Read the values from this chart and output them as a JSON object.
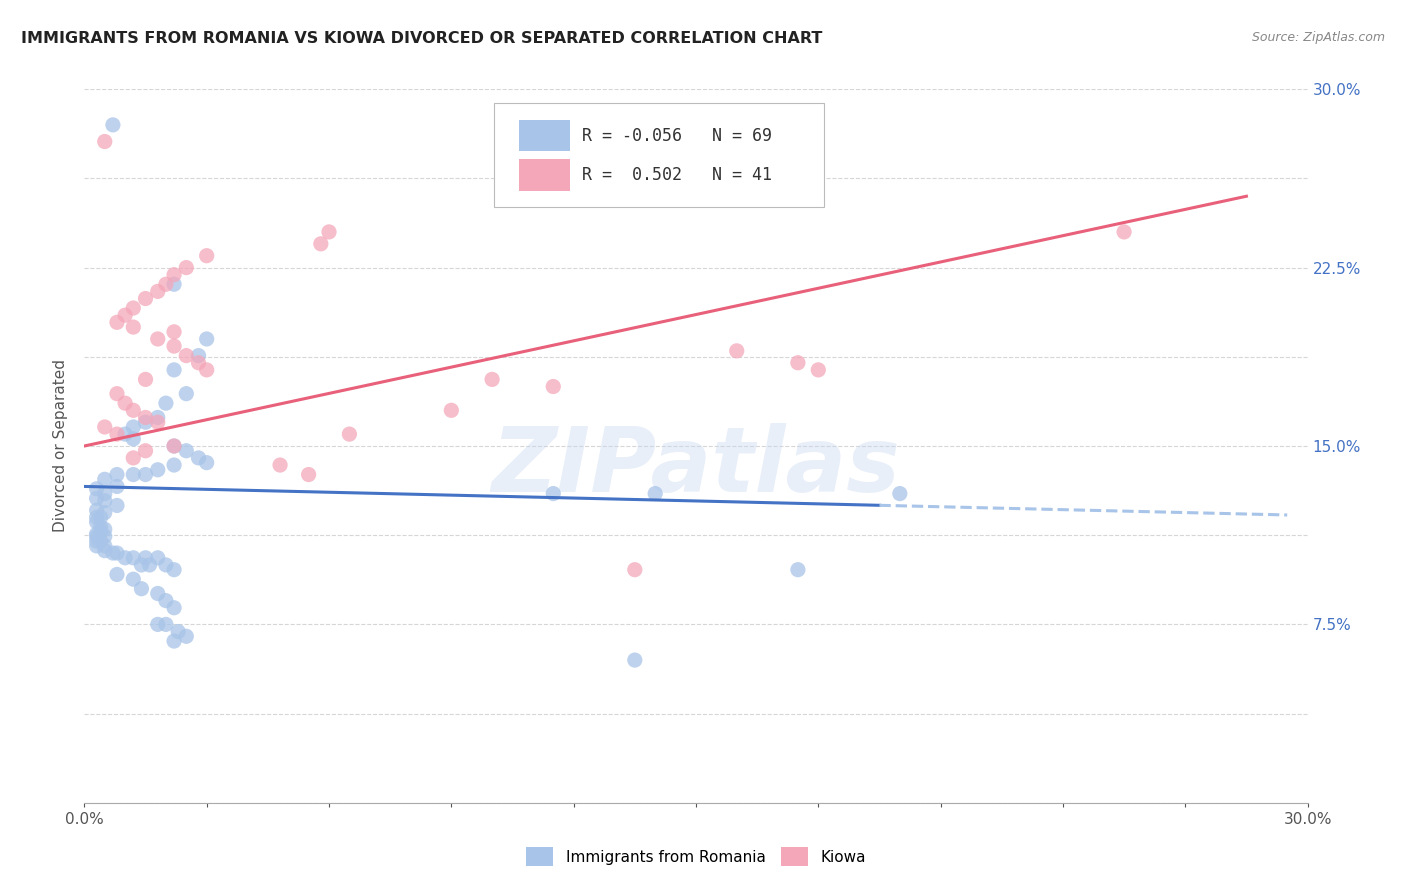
{
  "title": "IMMIGRANTS FROM ROMANIA VS KIOWA DIVORCED OR SEPARATED CORRELATION CHART",
  "source": "Source: ZipAtlas.com",
  "ylabel": "Divorced or Separated",
  "xlim": [
    0.0,
    0.3
  ],
  "ylim": [
    0.0,
    0.3
  ],
  "watermark": "ZIPatlas",
  "legend_romania_R": "-0.056",
  "legend_romania_N": "69",
  "legend_kiowa_R": "0.502",
  "legend_kiowa_N": "41",
  "romania_color": "#a8c4e8",
  "kiowa_color": "#f4a7b9",
  "romania_line_solid_color": "#4472c4",
  "romania_line_dash_color": "#a8c4e8",
  "kiowa_line_color": "#e8607a",
  "romania_scatter": [
    [
      0.007,
      0.285
    ],
    [
      0.022,
      0.218
    ],
    [
      0.03,
      0.195
    ],
    [
      0.028,
      0.188
    ],
    [
      0.022,
      0.182
    ],
    [
      0.025,
      0.172
    ],
    [
      0.02,
      0.168
    ],
    [
      0.018,
      0.162
    ],
    [
      0.015,
      0.16
    ],
    [
      0.012,
      0.158
    ],
    [
      0.01,
      0.155
    ],
    [
      0.012,
      0.153
    ],
    [
      0.022,
      0.15
    ],
    [
      0.025,
      0.148
    ],
    [
      0.028,
      0.145
    ],
    [
      0.03,
      0.143
    ],
    [
      0.022,
      0.142
    ],
    [
      0.018,
      0.14
    ],
    [
      0.015,
      0.138
    ],
    [
      0.012,
      0.138
    ],
    [
      0.008,
      0.138
    ],
    [
      0.005,
      0.136
    ],
    [
      0.008,
      0.133
    ],
    [
      0.003,
      0.132
    ],
    [
      0.005,
      0.13
    ],
    [
      0.003,
      0.128
    ],
    [
      0.005,
      0.127
    ],
    [
      0.008,
      0.125
    ],
    [
      0.003,
      0.123
    ],
    [
      0.005,
      0.122
    ],
    [
      0.003,
      0.12
    ],
    [
      0.004,
      0.12
    ],
    [
      0.003,
      0.118
    ],
    [
      0.004,
      0.116
    ],
    [
      0.005,
      0.115
    ],
    [
      0.004,
      0.114
    ],
    [
      0.003,
      0.113
    ],
    [
      0.003,
      0.112
    ],
    [
      0.005,
      0.112
    ],
    [
      0.003,
      0.11
    ],
    [
      0.004,
      0.11
    ],
    [
      0.003,
      0.108
    ],
    [
      0.005,
      0.108
    ],
    [
      0.005,
      0.106
    ],
    [
      0.007,
      0.105
    ],
    [
      0.008,
      0.105
    ],
    [
      0.01,
      0.103
    ],
    [
      0.012,
      0.103
    ],
    [
      0.015,
      0.103
    ],
    [
      0.018,
      0.103
    ],
    [
      0.014,
      0.1
    ],
    [
      0.016,
      0.1
    ],
    [
      0.02,
      0.1
    ],
    [
      0.022,
      0.098
    ],
    [
      0.008,
      0.096
    ],
    [
      0.012,
      0.094
    ],
    [
      0.014,
      0.09
    ],
    [
      0.018,
      0.088
    ],
    [
      0.02,
      0.085
    ],
    [
      0.022,
      0.082
    ],
    [
      0.018,
      0.075
    ],
    [
      0.02,
      0.075
    ],
    [
      0.023,
      0.072
    ],
    [
      0.025,
      0.07
    ],
    [
      0.022,
      0.068
    ],
    [
      0.115,
      0.13
    ],
    [
      0.14,
      0.13
    ],
    [
      0.175,
      0.098
    ],
    [
      0.2,
      0.13
    ],
    [
      0.135,
      0.06
    ]
  ],
  "kiowa_scatter": [
    [
      0.005,
      0.278
    ],
    [
      0.06,
      0.24
    ],
    [
      0.058,
      0.235
    ],
    [
      0.03,
      0.23
    ],
    [
      0.025,
      0.225
    ],
    [
      0.022,
      0.222
    ],
    [
      0.02,
      0.218
    ],
    [
      0.018,
      0.215
    ],
    [
      0.015,
      0.212
    ],
    [
      0.012,
      0.208
    ],
    [
      0.01,
      0.205
    ],
    [
      0.008,
      0.202
    ],
    [
      0.012,
      0.2
    ],
    [
      0.022,
      0.198
    ],
    [
      0.018,
      0.195
    ],
    [
      0.022,
      0.192
    ],
    [
      0.025,
      0.188
    ],
    [
      0.028,
      0.185
    ],
    [
      0.03,
      0.182
    ],
    [
      0.015,
      0.178
    ],
    [
      0.008,
      0.172
    ],
    [
      0.01,
      0.168
    ],
    [
      0.012,
      0.165
    ],
    [
      0.015,
      0.162
    ],
    [
      0.018,
      0.16
    ],
    [
      0.005,
      0.158
    ],
    [
      0.008,
      0.155
    ],
    [
      0.022,
      0.15
    ],
    [
      0.015,
      0.148
    ],
    [
      0.012,
      0.145
    ],
    [
      0.048,
      0.142
    ],
    [
      0.055,
      0.138
    ],
    [
      0.065,
      0.155
    ],
    [
      0.09,
      0.165
    ],
    [
      0.1,
      0.178
    ],
    [
      0.115,
      0.175
    ],
    [
      0.16,
      0.19
    ],
    [
      0.175,
      0.185
    ],
    [
      0.18,
      0.182
    ],
    [
      0.255,
      0.24
    ],
    [
      0.135,
      0.098
    ]
  ],
  "romania_trend_x": [
    0.0,
    0.295
  ],
  "romania_trend_y": [
    0.133,
    0.121
  ],
  "romania_trend_split_x": 0.195,
  "kiowa_trend_x": [
    0.0,
    0.285
  ],
  "kiowa_trend_y": [
    0.15,
    0.255
  ],
  "grid_color": "#cccccc",
  "bg_color": "#ffffff"
}
